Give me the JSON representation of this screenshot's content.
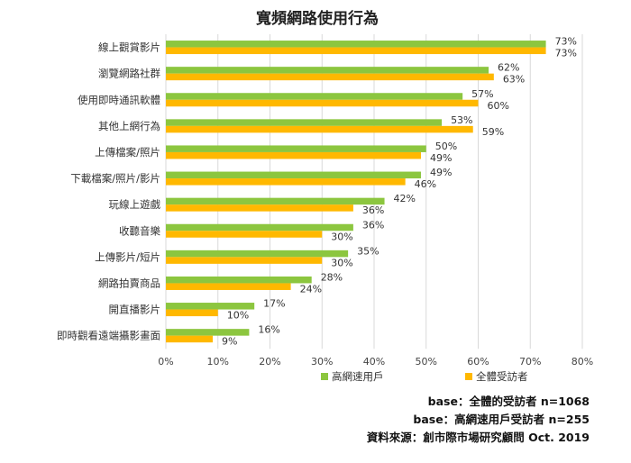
{
  "chart_data": {
    "type": "bar",
    "orientation": "horizontal",
    "title": "寬頻網路使用行為",
    "categories": [
      "線上觀賞影片",
      "瀏覽網路社群",
      "使用即時通訊軟體",
      "其他上網行為",
      "上傳檔案/照片",
      "下載檔案/照片/影片",
      "玩線上遊戲",
      "收聽音樂",
      "上傳影片/短片",
      "網路拍賣商品",
      "開直播影片",
      "即時觀看遠端攝影畫面"
    ],
    "series": [
      {
        "name": "高網速用戶",
        "color": "#8cc63f",
        "values": [
          73,
          62,
          57,
          53,
          50,
          49,
          42,
          36,
          35,
          28,
          17,
          16
        ]
      },
      {
        "name": "全體受訪者",
        "color": "#ffb800",
        "values": [
          73,
          63,
          60,
          59,
          49,
          46,
          36,
          30,
          30,
          24,
          10,
          9
        ]
      }
    ],
    "xlim": [
      0,
      80
    ],
    "xticks": [
      0,
      10,
      20,
      30,
      40,
      50,
      60,
      70,
      80
    ],
    "tick_suffix": "%",
    "grid": true,
    "legend_position": "bottom"
  },
  "notes": [
    "base：全體的受訪者 n=1068",
    "base：高網速用戶受訪者 n=255",
    "資料來源：創市際市場研究顧問 Oct. 2019"
  ]
}
